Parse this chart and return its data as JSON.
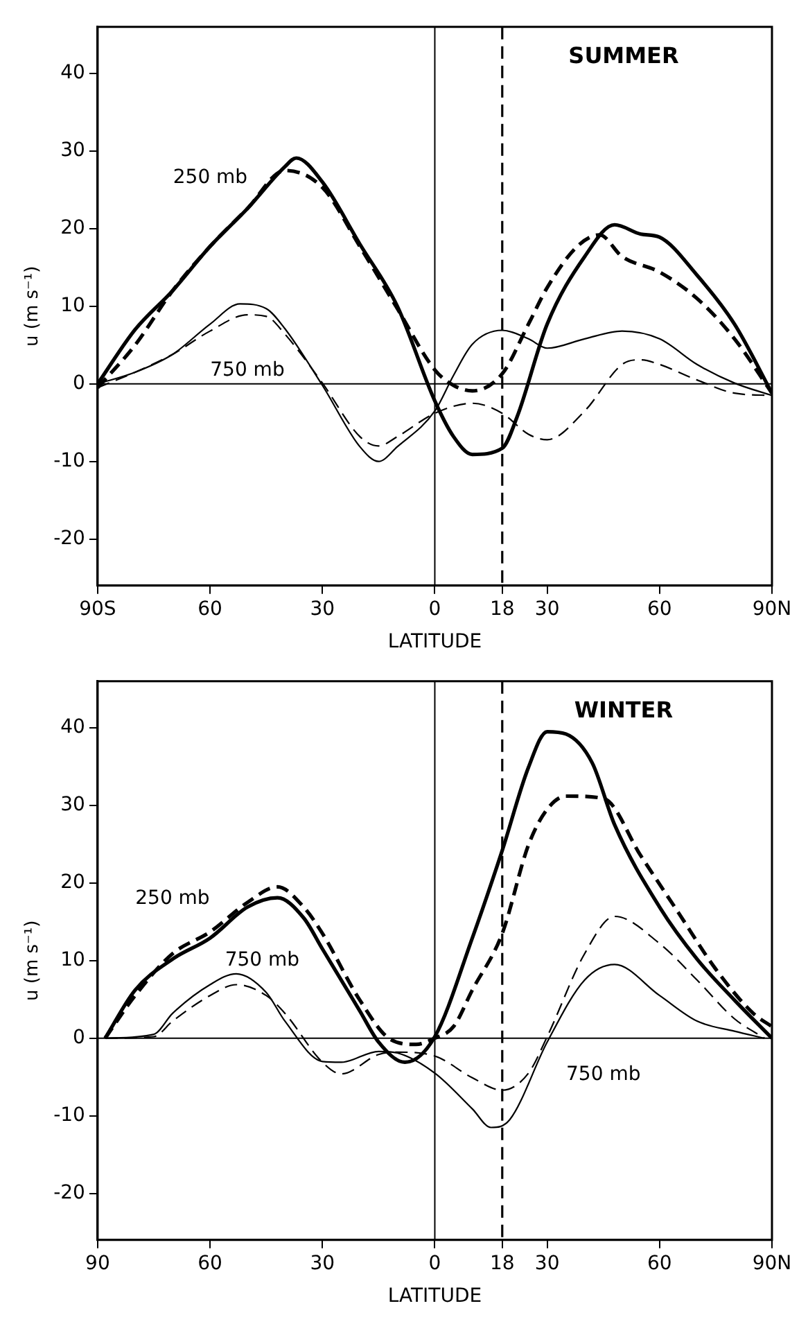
{
  "chart_data": [
    {
      "type": "line",
      "title": "SUMMER",
      "xlabel": "LATITUDE",
      "ylabel": "u (m s⁻¹)",
      "xlim": [
        -90,
        90
      ],
      "ylim": [
        -26,
        46
      ],
      "xticks": [
        {
          "value": -90,
          "label": "90S"
        },
        {
          "value": -60,
          "label": "60"
        },
        {
          "value": -30,
          "label": "30"
        },
        0,
        18,
        30,
        60,
        {
          "value": 90,
          "label": "90N"
        }
      ],
      "yticks": [
        -20,
        -10,
        0,
        10,
        20,
        30,
        40
      ],
      "grid": false,
      "legend": false,
      "marker": "none",
      "ref_lines": [
        {
          "axis": "x",
          "value": 0,
          "line_style": "solid",
          "color": "#000000"
        },
        {
          "axis": "x",
          "value": 18,
          "line_style": "dashed",
          "color": "#000000"
        },
        {
          "axis": "y",
          "value": 0,
          "line_style": "solid",
          "color": "#000000"
        }
      ],
      "annotations": [
        "250 mb",
        "750 mb"
      ],
      "series": [
        {
          "color": "#000000",
          "line_style": "solid",
          "x": [
            -90,
            -80,
            -70,
            -60,
            -50,
            -40,
            -37,
            -30,
            -20,
            -10,
            0,
            5,
            10,
            18,
            22,
            30,
            40,
            48,
            55,
            60,
            70,
            80,
            90
          ],
          "values": [
            0,
            7,
            12,
            17.7,
            22.6,
            28,
            29.1,
            26,
            18,
            10,
            -2.2,
            -6.8,
            -9.1,
            -8.3,
            -4.2,
            7.7,
            16.4,
            20.5,
            19.3,
            18.9,
            14,
            7.7,
            -1.2
          ]
        },
        {
          "color": "#000000",
          "line_style": "dashed",
          "x": [
            -90,
            -80,
            -70,
            -60,
            -50,
            -40,
            -30,
            -20,
            -10,
            0,
            5,
            10,
            18,
            25,
            30,
            38,
            44,
            50,
            60,
            70,
            80,
            90
          ],
          "values": [
            -0.5,
            5,
            12,
            17.7,
            22.6,
            27.5,
            25.3,
            17.7,
            9.7,
            1.8,
            -0.2,
            -0.9,
            1.3,
            7.7,
            12.4,
            17.7,
            19.2,
            16.4,
            14.4,
            11,
            5.8,
            -1.2
          ]
        },
        {
          "color": "#000000",
          "line_style": "solid",
          "x": [
            -90,
            -80,
            -70,
            -60,
            -52,
            -45,
            -40,
            -30,
            -20,
            -15,
            -10,
            0,
            5,
            10,
            18,
            25,
            30,
            40,
            50,
            60,
            70,
            80,
            90
          ],
          "values": [
            0,
            1.5,
            3.8,
            7.7,
            10.3,
            9.7,
            7.1,
            -0.2,
            -8.1,
            -10,
            -8.1,
            -3.5,
            1.1,
            5.1,
            6.9,
            5.8,
            4.6,
            5.8,
            6.8,
            5.8,
            2.5,
            0.1,
            -1.5
          ]
        },
        {
          "color": "#000000",
          "line_style": "dashed",
          "x": [
            -90,
            -80,
            -70,
            -60,
            -50,
            -45,
            -40,
            -30,
            -20,
            -15,
            -10,
            0,
            10,
            18,
            25,
            30,
            40,
            50,
            55,
            60,
            70,
            80,
            90
          ],
          "values": [
            -0.5,
            1.5,
            3.8,
            6.8,
            8.9,
            8.7,
            6.4,
            0.1,
            -6.8,
            -8,
            -6.8,
            -3.8,
            -2.5,
            -3.8,
            -6.5,
            -7.2,
            -3.5,
            2.5,
            3.1,
            2.5,
            0.5,
            -1.2,
            -1.5
          ]
        }
      ]
    },
    {
      "type": "line",
      "title": "WINTER",
      "xlabel": "LATITUDE",
      "ylabel": "u (m s⁻¹)",
      "xlim": [
        -90,
        90
      ],
      "ylim": [
        -26,
        46
      ],
      "xticks": [
        {
          "value": -90,
          "label": "90"
        },
        {
          "value": -60,
          "label": "60"
        },
        {
          "value": -30,
          "label": "30"
        },
        0,
        18,
        30,
        60,
        {
          "value": 90,
          "label": "90N"
        }
      ],
      "yticks": [
        -20,
        -10,
        0,
        10,
        20,
        30,
        40
      ],
      "grid": false,
      "legend": false,
      "marker": "none",
      "ref_lines": [
        {
          "axis": "x",
          "value": 0,
          "line_style": "solid",
          "color": "#000000"
        },
        {
          "axis": "x",
          "value": 18,
          "line_style": "dashed",
          "color": "#000000"
        },
        {
          "axis": "y",
          "value": 0,
          "line_style": "solid",
          "color": "#000000"
        }
      ],
      "annotations": [
        "250 mb",
        "750 mb",
        "750 mb"
      ],
      "series": [
        {
          "color": "#000000",
          "line_style": "solid",
          "x": [
            -88,
            -80,
            -70,
            -60,
            -50,
            -42,
            -35,
            -30,
            -20,
            -15,
            -8,
            0,
            10,
            18,
            25,
            30,
            35,
            42,
            48,
            60,
            70,
            80,
            90
          ],
          "values": [
            0,
            6.2,
            10.2,
            12.9,
            16.9,
            18.1,
            15.5,
            11.5,
            3.5,
            -0.5,
            -3.1,
            0.2,
            12.9,
            24.2,
            34.9,
            39.5,
            39.2,
            35.5,
            27.5,
            16.9,
            10.2,
            4.9,
            0
          ]
        },
        {
          "color": "#000000",
          "line_style": "dashed",
          "x": [
            -88,
            -80,
            -70,
            -60,
            -50,
            -42,
            -35,
            -30,
            -20,
            -12,
            -5,
            0,
            5,
            10,
            18,
            25,
            30,
            35,
            45,
            55,
            65,
            75,
            85,
            90
          ],
          "values": [
            0,
            5.5,
            10.9,
            13.7,
            17.5,
            19.5,
            16.9,
            13.5,
            4.9,
            -0.1,
            -0.8,
            0,
            1.5,
            6.2,
            13.5,
            24.9,
            29.5,
            31.2,
            30.9,
            23.5,
            16.2,
            8.9,
            3.2,
            1.5
          ]
        },
        {
          "color": "#000000",
          "line_style": "solid",
          "x": [
            -88,
            -75,
            -70,
            -60,
            -53,
            -45,
            -40,
            -30,
            -25,
            -15,
            -10,
            0,
            10,
            15,
            20,
            30,
            40,
            48,
            60,
            70,
            80,
            88
          ],
          "values": [
            0,
            0.5,
            3.2,
            6.9,
            8.3,
            5.9,
            2.2,
            -3,
            -3.1,
            -1.7,
            -1.9,
            -4.5,
            -9.1,
            -11.5,
            -10.5,
            -0.5,
            7.5,
            9.5,
            5.5,
            2.2,
            0.9,
            0
          ]
        },
        {
          "color": "#000000",
          "line_style": "dashed",
          "x": [
            -88,
            -75,
            -70,
            -60,
            -53,
            -45,
            -40,
            -30,
            -25,
            -15,
            -10,
            0,
            10,
            18,
            25,
            30,
            40,
            48,
            60,
            70,
            80,
            88
          ],
          "values": [
            0,
            0.2,
            2.2,
            5.5,
            6.9,
            5.5,
            3.2,
            -3.1,
            -4.6,
            -2.1,
            -1.8,
            -2.3,
            -5.1,
            -6.7,
            -4.5,
            0.2,
            10.9,
            15.7,
            12.2,
            7.5,
            2.5,
            0
          ]
        }
      ]
    }
  ]
}
